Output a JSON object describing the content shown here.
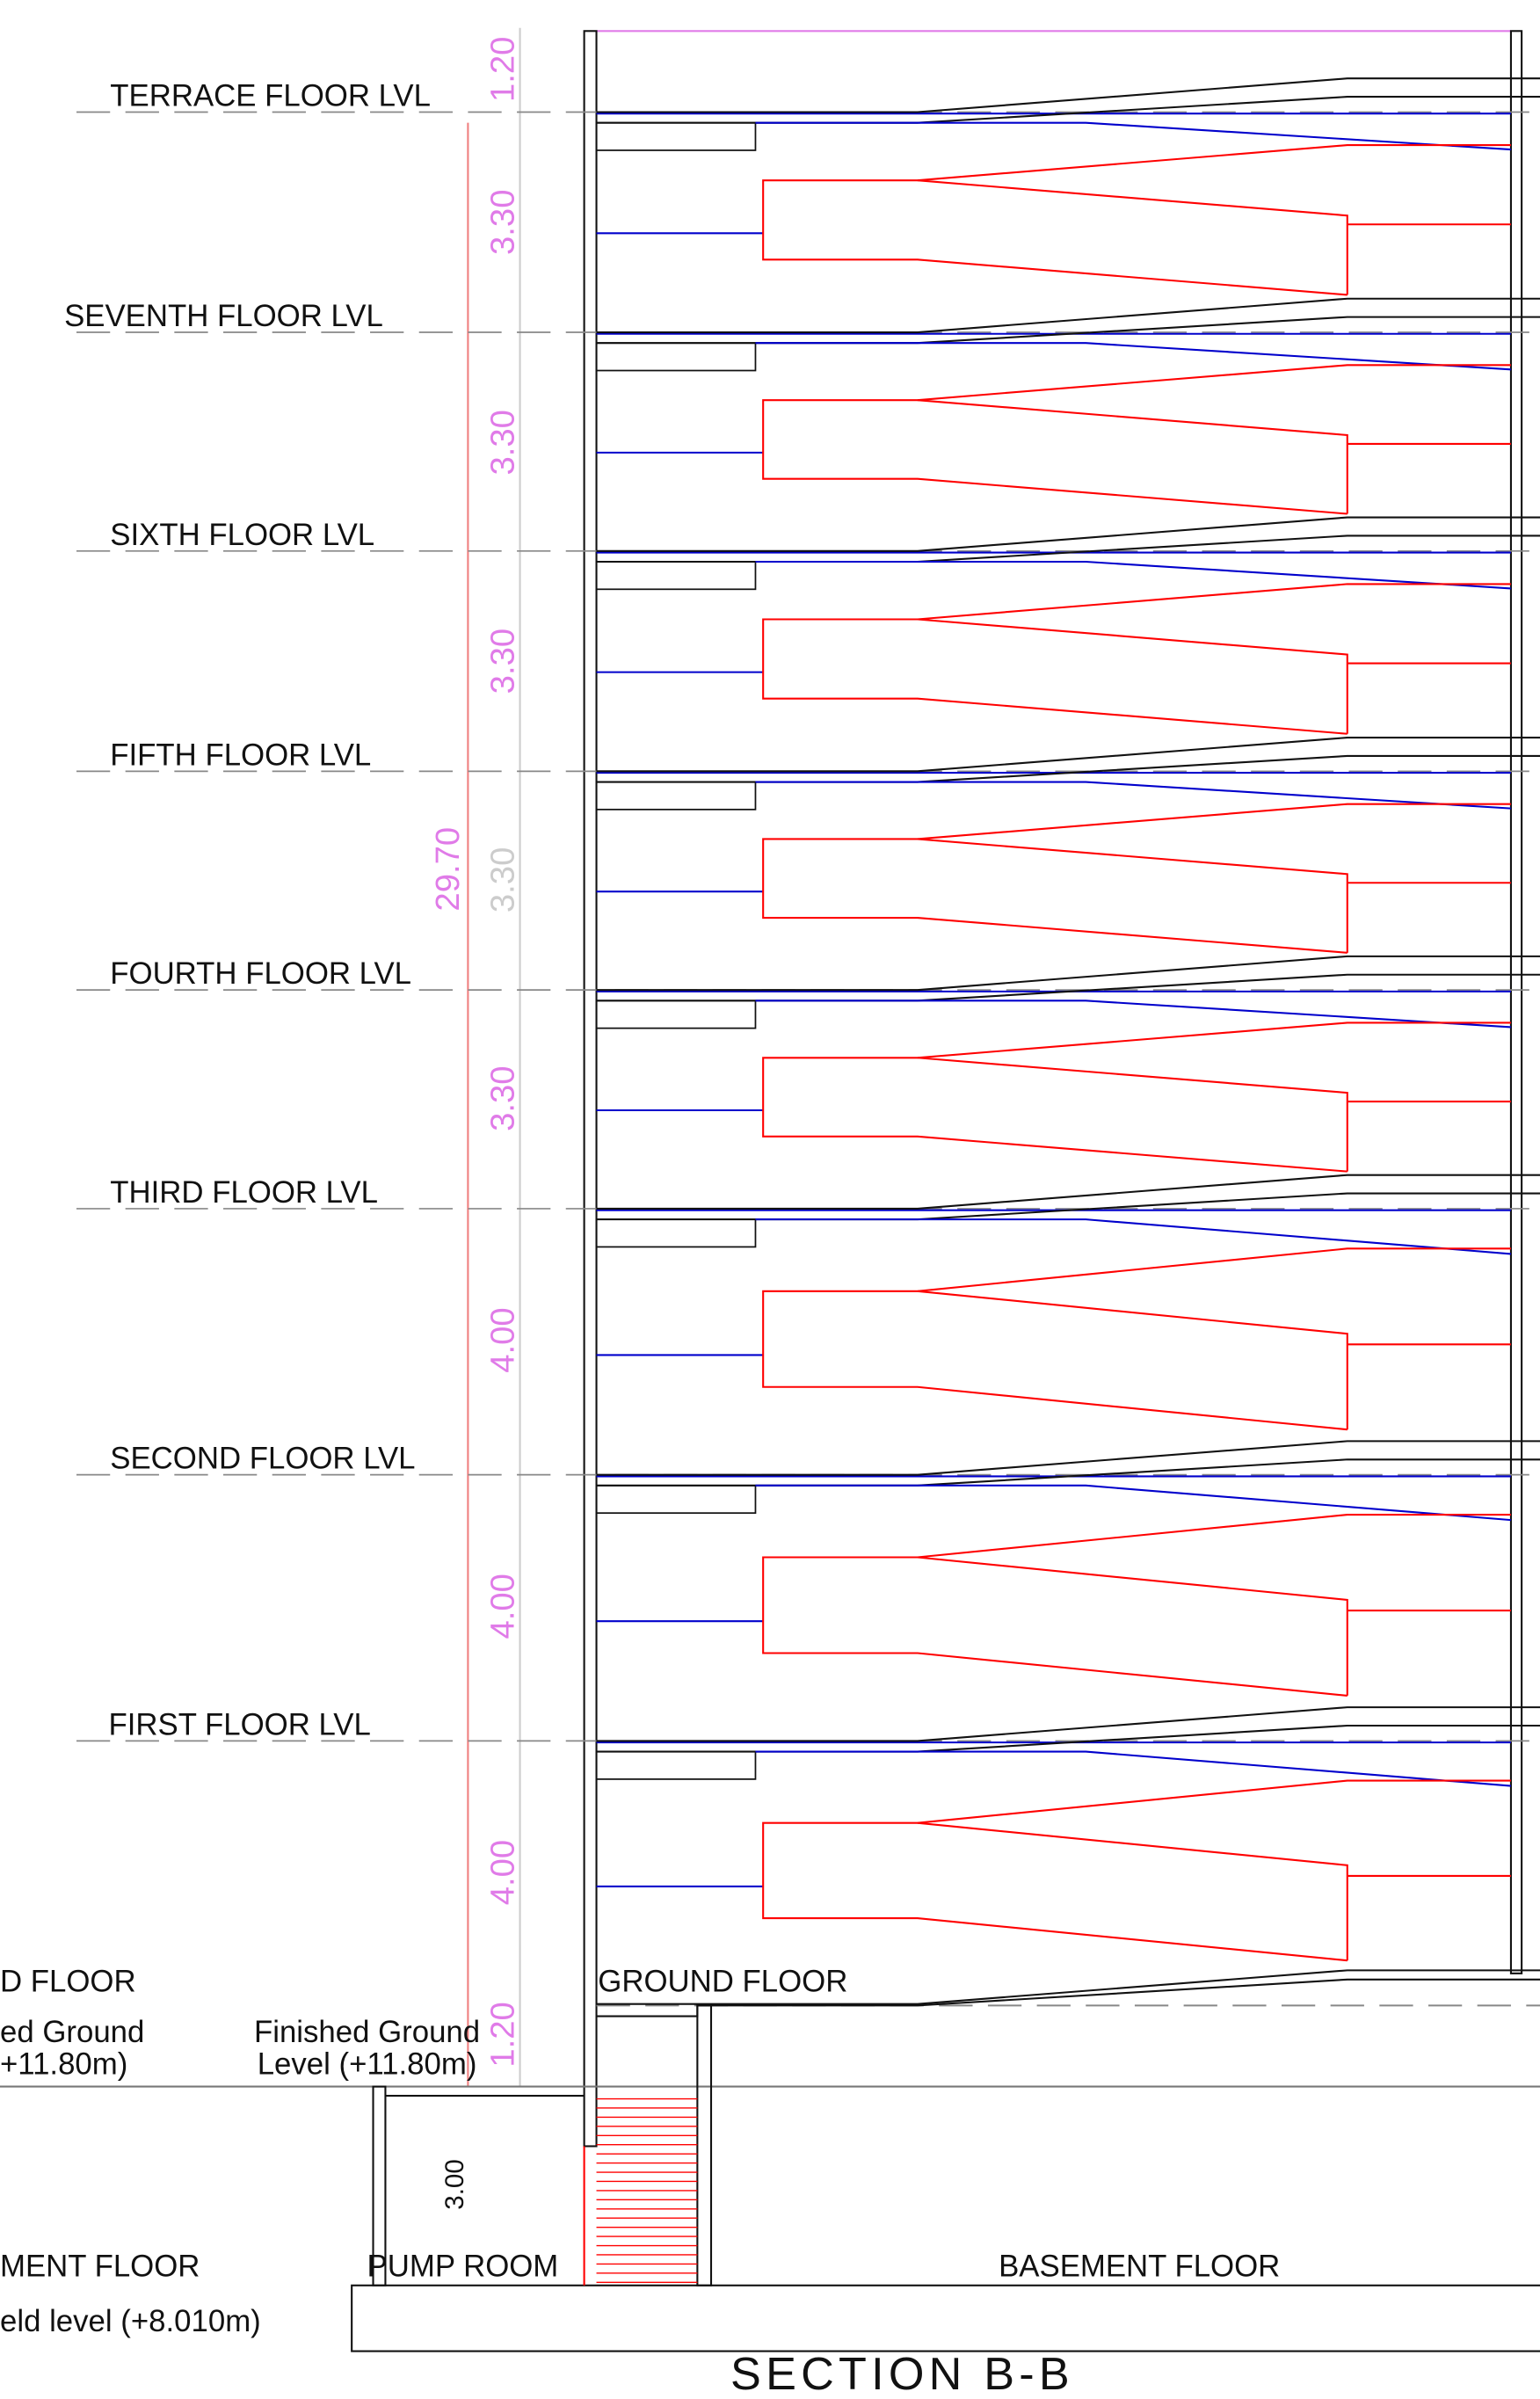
{
  "levels": [
    "TERRACE FLOOR LVL",
    "SEVENTH FLOOR LVL",
    "SIXTH FLOOR LVL",
    "FIFTH FLOOR LVL",
    "FOURTH FLOOR LVL",
    "THIRD FLOOR LVL",
    "SECOND FLOOR LVL",
    "FIRST FLOOR LVL"
  ],
  "dimensions": {
    "segments": [
      "1.20",
      "3.30",
      "3.30",
      "3.30",
      "3.30",
      "3.30",
      "4.00",
      "4.00",
      "4.00",
      "1.20"
    ],
    "total": "29.70",
    "basement": "3.00"
  },
  "labels": {
    "ground_floor": "GROUND FLOOR",
    "ground_floor_left": "D FLOOR",
    "finished_ground": [
      "Finished Ground",
      "Level (+11.80m)"
    ],
    "finished_ground_left": [
      "ed Ground",
      "+11.80m)"
    ],
    "pump_room": "PUMP ROOM",
    "basement_floor": "BASEMENT  FLOOR",
    "basement_floor_left": "MENT  FLOOR",
    "field_level_left": "eld level (+8.010m)",
    "title": "SECTION B-B"
  }
}
